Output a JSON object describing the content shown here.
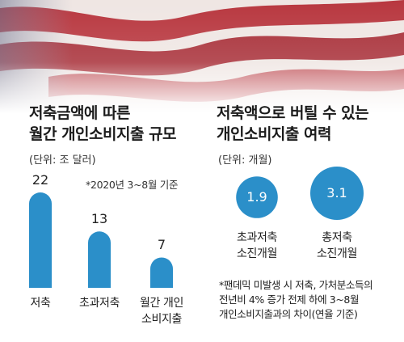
{
  "left": {
    "title_line1": "저축금액에 따른",
    "title_line2": "월간 개인소비지출 규모",
    "unit": "(단위: 조 달러)",
    "note": "*2020년 3~8월 기준"
  },
  "right": {
    "title_line1": "저축액으로 버틸 수 있는",
    "title_line2": "개인소비지출 여력",
    "unit": "(단위: 개월)",
    "footnote_line1": "*팬데믹 미발생 시 저축, 가처분소득의",
    "footnote_line2": "전년비 4% 증가 전제 하에 3~8월",
    "footnote_line3": "개인소비지출과의 차이(연율 기준)"
  },
  "chart_data": [
    {
      "type": "bar",
      "title": "저축금액에 따른 월간 개인소비지출 규모",
      "unit": "조 달러",
      "categories": [
        "저축",
        "초과저축",
        "월간 개인 소비지출"
      ],
      "category_lines": [
        [
          "저축"
        ],
        [
          "초과저축"
        ],
        [
          "월간 개인",
          "소비지출"
        ]
      ],
      "values": [
        22,
        13,
        7
      ],
      "value_labels": [
        "22",
        "13",
        "7"
      ],
      "color": "#2b8fc9"
    },
    {
      "type": "bubble",
      "title": "저축액으로 버틸 수 있는 개인소비지출 여력",
      "unit": "개월",
      "categories": [
        "초과저축 소진개월",
        "총저축 소진개월"
      ],
      "category_lines": [
        [
          "초과저축",
          "소진개월"
        ],
        [
          "총저축",
          "소진개월"
        ]
      ],
      "values": [
        1.9,
        3.1
      ],
      "value_labels": [
        "1.9",
        "3.1"
      ],
      "color": "#2b8fc9"
    }
  ],
  "colors": {
    "accent": "#2b8fc9",
    "flag_red": "#b8373f",
    "flag_white": "#ffffff"
  }
}
